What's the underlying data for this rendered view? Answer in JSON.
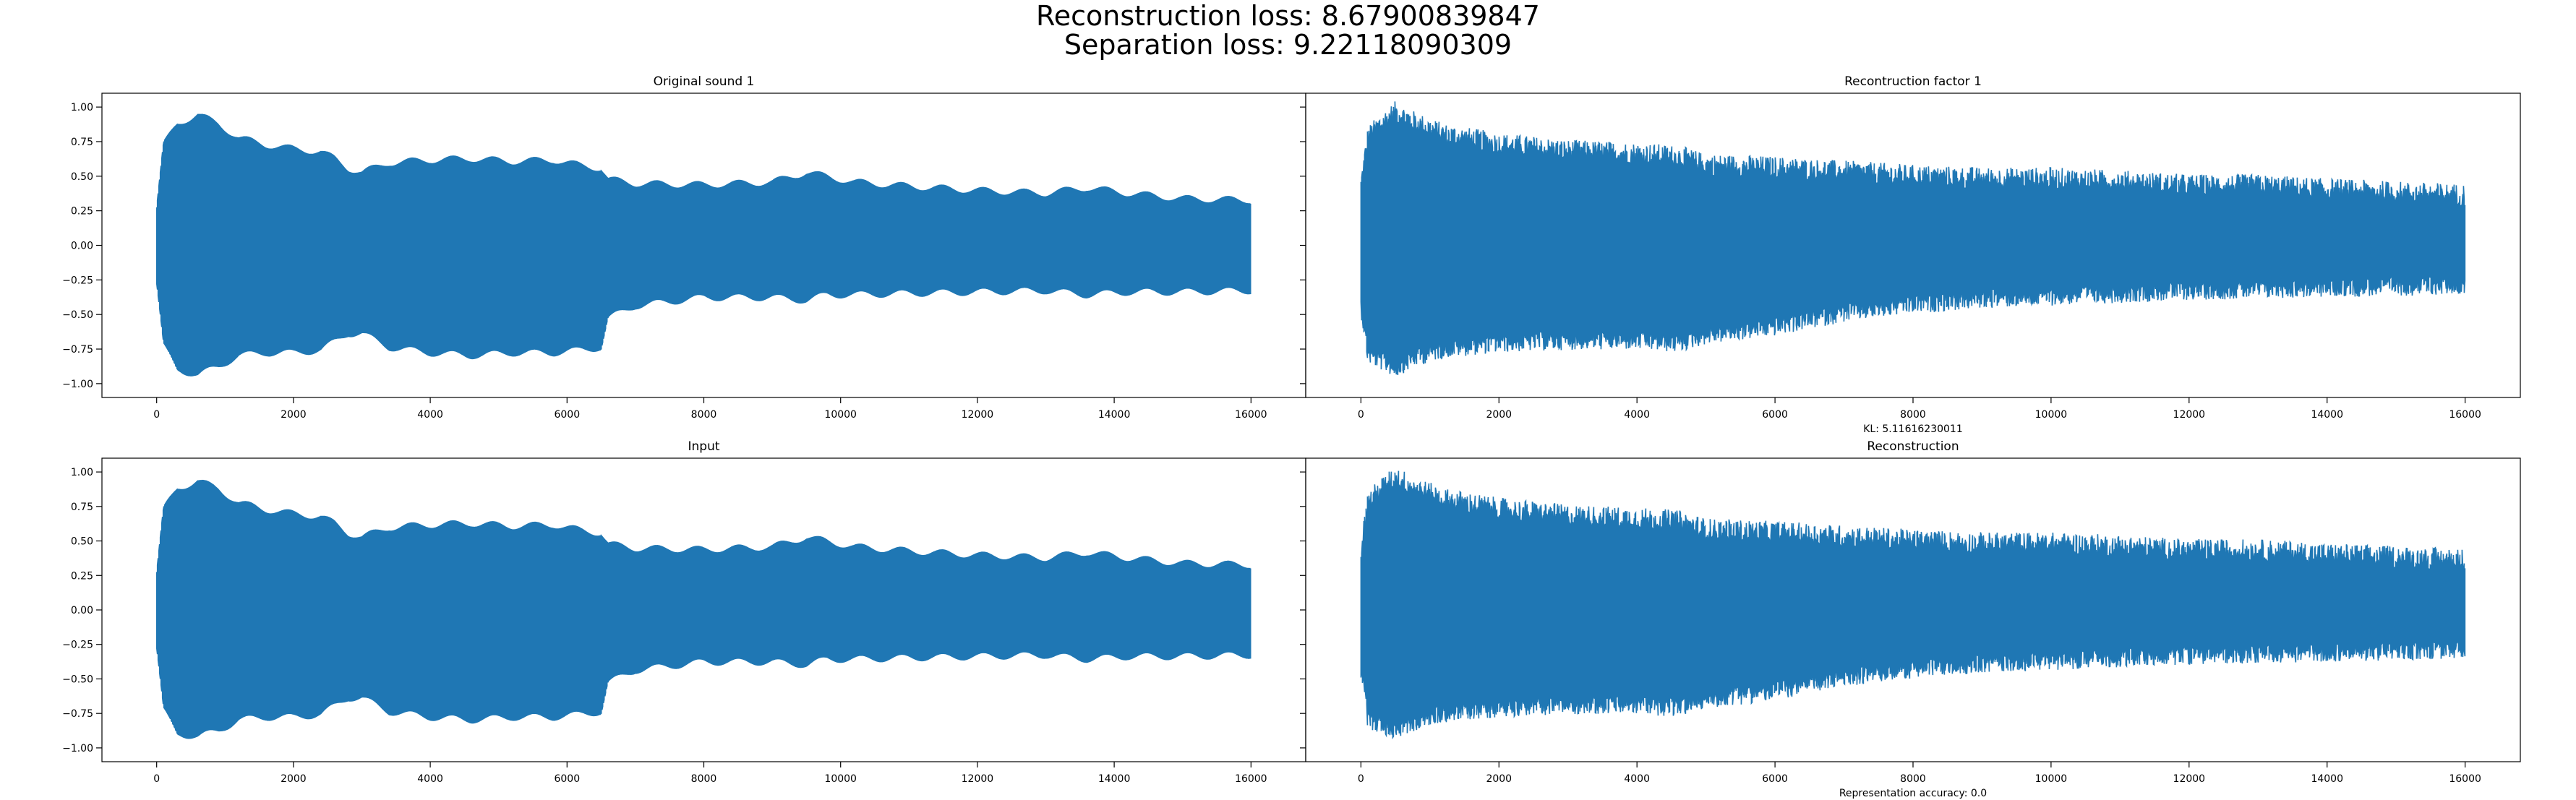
{
  "figure": {
    "suptitle_line1": "Reconstruction loss: 8.67900839847",
    "suptitle_line2": "Separation loss: 9.22118090309"
  },
  "colors": {
    "waveform": "#1f77b4",
    "axes": "#000000",
    "background": "#ffffff"
  },
  "chart_data": [
    {
      "type": "line",
      "title": "Original sound 1",
      "xlabel": "",
      "ylabel": "",
      "xlim": [
        -800,
        16800
      ],
      "ylim": [
        -1.1,
        1.1
      ],
      "xticks": [
        0,
        2000,
        4000,
        6000,
        8000,
        10000,
        12000,
        14000,
        16000
      ],
      "yticks": [
        -1.0,
        -0.75,
        -0.5,
        -0.25,
        0.0,
        0.25,
        0.5,
        0.75,
        1.0
      ],
      "ytick_labels": [
        "−1.00",
        "−0.75",
        "−0.50",
        "−0.25",
        "0.00",
        "0.25",
        "0.50",
        "0.75",
        "1.00"
      ],
      "grid": false,
      "series": [
        {
          "style": "smooth-beating",
          "envelope": {
            "x": [
              0,
              100,
              300,
              600,
              900,
              1200,
              1600,
              2000,
              2400,
              2600,
              2800,
              3000,
              3400,
              4000,
              4600,
              5200,
              5800,
              6200,
              6500,
              6600,
              7000,
              8000,
              9000,
              9500,
              9800,
              10200,
              11000,
              12000,
              13000,
              13600,
              14200,
              15000,
              16000
            ],
            "upper": [
              0.3,
              0.75,
              0.9,
              0.97,
              0.9,
              0.8,
              0.75,
              0.72,
              0.7,
              0.65,
              0.58,
              0.55,
              0.62,
              0.64,
              0.65,
              0.63,
              0.64,
              0.6,
              0.58,
              0.5,
              0.47,
              0.46,
              0.48,
              0.55,
              0.52,
              0.48,
              0.45,
              0.42,
              0.4,
              0.44,
              0.4,
              0.36,
              0.35
            ],
            "lower": [
              -0.3,
              -0.75,
              -0.92,
              -0.96,
              -0.9,
              -0.82,
              -0.8,
              -0.8,
              -0.78,
              -0.72,
              -0.66,
              -0.66,
              -0.76,
              -0.8,
              -0.82,
              -0.8,
              -0.8,
              -0.78,
              -0.76,
              -0.55,
              -0.46,
              -0.4,
              -0.4,
              -0.42,
              -0.38,
              -0.38,
              -0.37,
              -0.36,
              -0.35,
              -0.38,
              -0.36,
              -0.36,
              -0.35
            ]
          }
        }
      ]
    },
    {
      "type": "line",
      "title": "Recontruction factor 1",
      "xlabel": "KL: 5.11616230011",
      "ylabel": "",
      "xlim": [
        -800,
        16800
      ],
      "ylim": [
        -1.1,
        1.1
      ],
      "xticks": [
        0,
        2000,
        4000,
        6000,
        8000,
        10000,
        12000,
        14000,
        16000
      ],
      "yticks": [
        -1.0,
        -0.75,
        -0.5,
        -0.25,
        0.0,
        0.25,
        0.5,
        0.75,
        1.0
      ],
      "ytick_labels": [
        "",
        "",
        "",
        "",
        "",
        "",
        "",
        "",
        ""
      ],
      "grid": false,
      "series": [
        {
          "style": "noisy",
          "envelope": {
            "x": [
              0,
              100,
              300,
              500,
              800,
              1200,
              2000,
              3000,
              4000,
              4600,
              5000,
              6000,
              7000,
              8000,
              9000,
              10000,
              11000,
              12000,
              13000,
              14000,
              15000,
              16000
            ],
            "upper": [
              0.45,
              0.8,
              0.9,
              0.98,
              0.9,
              0.82,
              0.75,
              0.7,
              0.68,
              0.66,
              0.6,
              0.58,
              0.55,
              0.52,
              0.5,
              0.5,
              0.48,
              0.45,
              0.45,
              0.42,
              0.4,
              0.38
            ],
            "lower": [
              -0.45,
              -0.8,
              -0.85,
              -0.9,
              -0.82,
              -0.76,
              -0.72,
              -0.7,
              -0.7,
              -0.72,
              -0.66,
              -0.6,
              -0.5,
              -0.44,
              -0.4,
              -0.38,
              -0.36,
              -0.34,
              -0.33,
              -0.32,
              -0.31,
              -0.3
            ]
          }
        }
      ]
    },
    {
      "type": "line",
      "title": "Input",
      "xlabel": "",
      "ylabel": "",
      "xlim": [
        -800,
        16800
      ],
      "ylim": [
        -1.1,
        1.1
      ],
      "xticks": [
        0,
        2000,
        4000,
        6000,
        8000,
        10000,
        12000,
        14000,
        16000
      ],
      "yticks": [
        -1.0,
        -0.75,
        -0.5,
        -0.25,
        0.0,
        0.25,
        0.5,
        0.75,
        1.0
      ],
      "ytick_labels": [
        "−1.00",
        "−0.75",
        "−0.50",
        "−0.25",
        "0.00",
        "0.25",
        "0.50",
        "0.75",
        "1.00"
      ],
      "grid": false,
      "series": [
        {
          "style": "smooth-beating",
          "envelope": {
            "x": [
              0,
              100,
              300,
              600,
              900,
              1200,
              1600,
              2000,
              2400,
              2600,
              2800,
              3000,
              3400,
              4000,
              4600,
              5200,
              5800,
              6200,
              6500,
              6600,
              7000,
              8000,
              9000,
              9500,
              9800,
              10200,
              11000,
              12000,
              13000,
              13600,
              14200,
              15000,
              16000
            ],
            "upper": [
              0.3,
              0.75,
              0.9,
              0.96,
              0.9,
              0.8,
              0.75,
              0.72,
              0.7,
              0.65,
              0.58,
              0.55,
              0.62,
              0.64,
              0.65,
              0.63,
              0.64,
              0.6,
              0.58,
              0.5,
              0.47,
              0.46,
              0.48,
              0.55,
              0.52,
              0.48,
              0.45,
              0.42,
              0.4,
              0.44,
              0.4,
              0.36,
              0.35
            ],
            "lower": [
              -0.3,
              -0.75,
              -0.92,
              -0.94,
              -0.9,
              -0.82,
              -0.8,
              -0.8,
              -0.78,
              -0.72,
              -0.66,
              -0.66,
              -0.76,
              -0.8,
              -0.82,
              -0.8,
              -0.8,
              -0.78,
              -0.76,
              -0.55,
              -0.46,
              -0.4,
              -0.4,
              -0.42,
              -0.38,
              -0.38,
              -0.37,
              -0.36,
              -0.35,
              -0.38,
              -0.36,
              -0.36,
              -0.35
            ]
          }
        }
      ]
    },
    {
      "type": "line",
      "title": "Reconstruction",
      "xlabel": "Representation accuracy: 0.0",
      "ylabel": "",
      "xlim": [
        -800,
        16800
      ],
      "ylim": [
        -1.1,
        1.1
      ],
      "xticks": [
        0,
        2000,
        4000,
        6000,
        8000,
        10000,
        12000,
        14000,
        16000
      ],
      "yticks": [
        -1.0,
        -0.75,
        -0.5,
        -0.25,
        0.0,
        0.25,
        0.5,
        0.75,
        1.0
      ],
      "ytick_labels": [
        "",
        "",
        "",
        "",
        "",
        "",
        "",
        "",
        ""
      ],
      "grid": false,
      "series": [
        {
          "style": "noisy",
          "envelope": {
            "x": [
              0,
              100,
              300,
              500,
              800,
              1200,
              2000,
              3000,
              4000,
              4600,
              5000,
              6000,
              7000,
              8000,
              9000,
              10000,
              11000,
              12000,
              13000,
              14000,
              15000,
              16000
            ],
            "upper": [
              0.45,
              0.8,
              0.9,
              0.98,
              0.9,
              0.82,
              0.75,
              0.7,
              0.68,
              0.66,
              0.6,
              0.58,
              0.55,
              0.52,
              0.5,
              0.5,
              0.48,
              0.45,
              0.45,
              0.42,
              0.4,
              0.38
            ],
            "lower": [
              -0.45,
              -0.8,
              -0.85,
              -0.88,
              -0.82,
              -0.76,
              -0.72,
              -0.7,
              -0.7,
              -0.72,
              -0.66,
              -0.6,
              -0.5,
              -0.44,
              -0.4,
              -0.38,
              -0.36,
              -0.34,
              -0.33,
              -0.32,
              -0.31,
              -0.3
            ]
          }
        }
      ]
    }
  ]
}
